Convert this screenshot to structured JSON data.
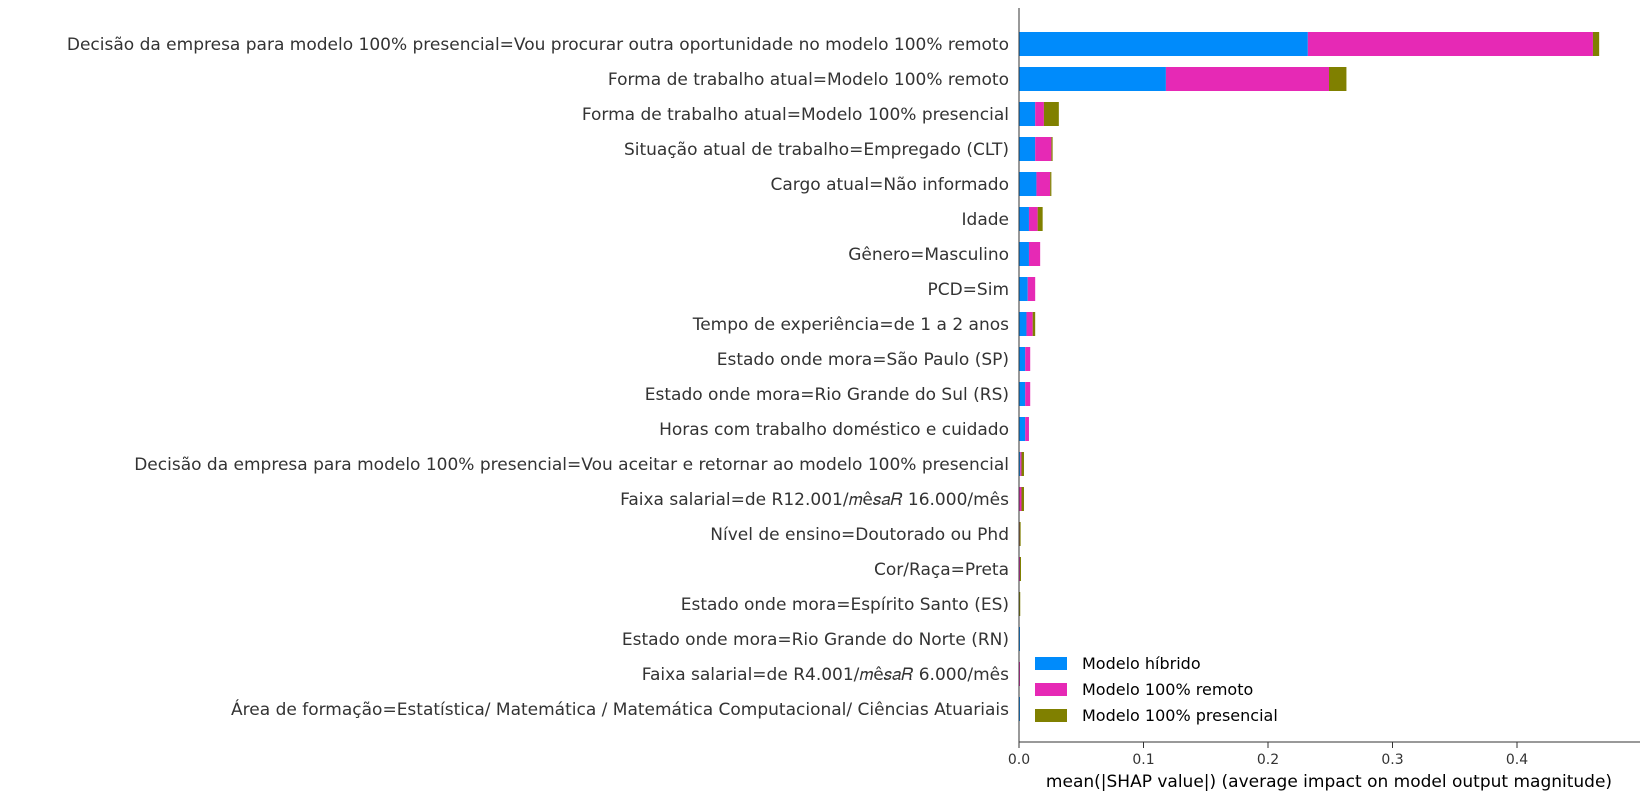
{
  "chart_data": {
    "type": "bar",
    "orientation": "horizontal",
    "stacked": true,
    "title": "",
    "xlabel": "mean(|SHAP value|) (average impact on model output magnitude)",
    "ylabel": "",
    "xlim": [
      0,
      0.49
    ],
    "xticks": [
      0.0,
      0.1,
      0.2,
      0.3,
      0.4
    ],
    "xtick_labels": [
      "0.0",
      "0.1",
      "0.2",
      "0.3",
      "0.4"
    ],
    "grid": false,
    "legend_position": "lower-right",
    "categories": [
      "Decisão da empresa para modelo 100% presencial=Vou procurar outra oportunidade no modelo 100% remoto",
      "Forma de trabalho atual=Modelo 100% remoto",
      "Forma de trabalho atual=Modelo 100% presencial",
      "Situação atual de trabalho=Empregado (CLT)",
      "Cargo atual=Não informado",
      "Idade",
      "Gênero=Masculino",
      "PCD=Sim",
      "Tempo de experiência=de 1 a 2 anos",
      "Estado onde mora=São Paulo (SP)",
      "Estado onde mora=Rio Grande do Sul (RS)",
      "Horas com trabalho doméstico e cuidado",
      "Decisão da empresa para modelo 100% presencial=Vou aceitar e retornar ao modelo 100% presencial",
      "Faixa salarial=de R12.001/𝑚ê𝑠𝑎𝑅 16.000/mês",
      "Nível de ensino=Doutorado ou Phd",
      "Cor/Raça=Preta",
      "Estado onde mora=Espírito Santo (ES)",
      "Estado onde mora=Rio Grande do Norte (RN)",
      "Faixa salarial=de R4.001/𝑚ê𝑠𝑎𝑅 6.000/mês",
      "Área de formação=Estatística/ Matemática / Matemática Computacional/ Ciências Atuariais"
    ],
    "series": [
      {
        "name": "Modelo híbrido",
        "color": "#008bfb",
        "values": [
          0.232,
          0.118,
          0.013,
          0.013,
          0.014,
          0.008,
          0.008,
          0.007,
          0.006,
          0.005,
          0.005,
          0.005,
          0.001,
          0.0,
          0.0,
          0.0,
          0.0,
          0.0002,
          0.0,
          0.0002
        ]
      },
      {
        "name": "Modelo 100% remoto",
        "color": "#ff0052",
        "values": [
          0.229,
          0.131,
          0.007,
          0.013,
          0.011,
          0.007,
          0.009,
          0.006,
          0.005,
          0.004,
          0.004,
          0.003,
          0.001,
          0.002,
          0.0005,
          0.0008,
          0.0,
          0.0,
          0.0003,
          0.0
        ]
      },
      {
        "name": "Modelo 100% presencial",
        "color": "#7f8c00",
        "values": [
          0.005,
          0.014,
          0.012,
          0.001,
          0.001,
          0.004,
          0.0,
          0.0,
          0.002,
          0.0,
          0.0,
          0.0,
          0.002,
          0.002,
          0.0007,
          0.0002,
          0.001,
          0.0,
          0.0,
          0.0
        ]
      }
    ]
  },
  "colors": {
    "hibrido": "#008bfb",
    "remoto": "#e629b5",
    "presencial": "#808000"
  }
}
